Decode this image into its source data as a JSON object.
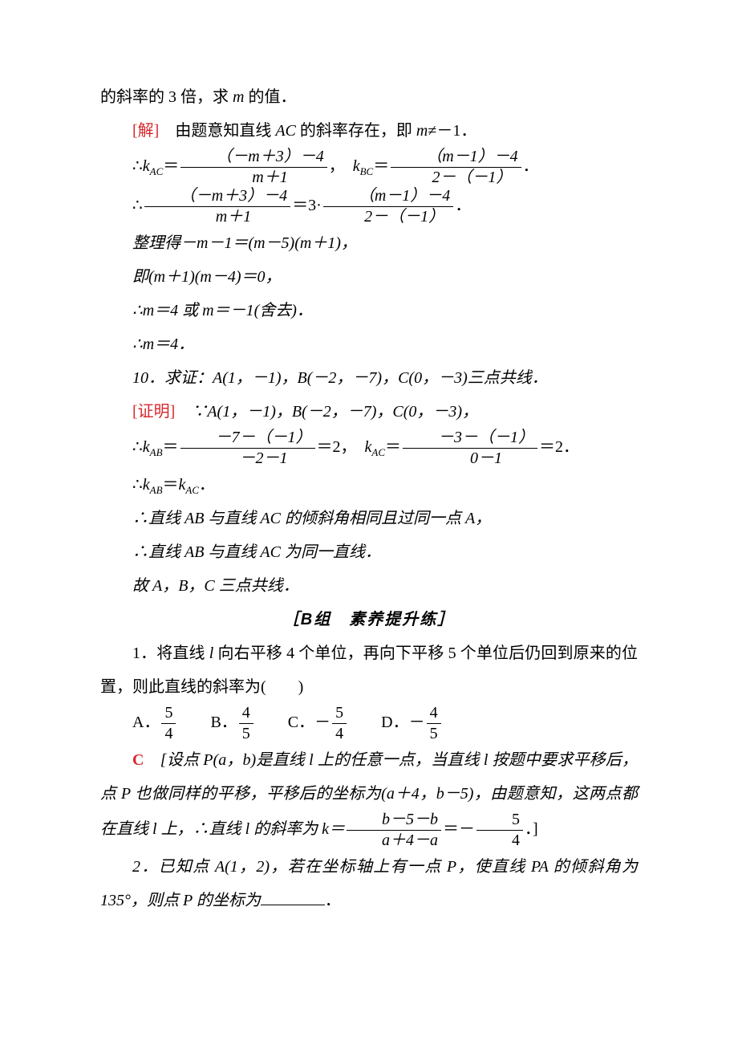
{
  "p1": "的斜率的 3 倍，求 ",
  "p1b": " 的值．",
  "sol_label": "[解]",
  "sol_text1": "　由题意知直线 ",
  "sol_text2": " 的斜率存在，即 ",
  "sol_text3": "≠－1．",
  "eq1_pre": "∴",
  "eq1_kAC": "k",
  "eq1_eq": "＝",
  "eq1_num": "（－m＋3）－4",
  "eq1_den": "m＋1",
  "eq1_sep": "，",
  "eq1_kBC": "k",
  "eq1_num2": "（m－1）－4",
  "eq1_den2": "2－（－1）",
  "eq1_period": "．",
  "eq2_pre": "∴",
  "eq2_num": "（－m＋3）－4",
  "eq2_den": "m＋1",
  "eq2_mid": "＝3·",
  "eq2_num2": "（m－1）－4",
  "eq2_den2": "2－（－1）",
  "eq2_period": "．",
  "l3": "整理得－m－1＝(m－5)(m＋1)，",
  "l4": "即(m＋1)(m－4)＝0，",
  "l5": "∴m＝4 或 m＝－1(舍去)．",
  "l6": "∴m＝4．",
  "q10": "10．求证：A(1，－1)，B(－2，－7)，C(0，－3)三点共线．",
  "proof_label": "[证明]",
  "proof_text": "　∵A(1，－1)，B(－2，－7)，C(0，－3)，",
  "eq3_pre": "∴",
  "eq3_k": "k",
  "eq3_eq": "＝",
  "eq3_num": "－7－（－1）",
  "eq3_den": "－2－1",
  "eq3_val": "＝2，",
  "eq3_k2": "k",
  "eq3_num2": "－3－（－1）",
  "eq3_den2": "0－1",
  "eq3_val2": "＝2．",
  "l7": "∴",
  "l7a": "k",
  "l7b": "＝",
  "l7c": "k",
  "l7d": "．",
  "l8": "∴直线 AB 与直线 AC 的倾斜角相同且过同一点 A，",
  "l9": "∴直线 AB 与直线 AC 为同一直线．",
  "l10": "故 A，B，C 三点共线．",
  "sectionB": "B",
  "sectionB_text": "组　素养提升练",
  "q1a": "1．将直线 ",
  "q1b": " 向右平移 4 个单位，再向下平移 5 个单位后仍回到原来的位置，则此直线的斜率为(　　)",
  "optA": "A．",
  "optA_num": "5",
  "optA_den": "4",
  "optB": "B．",
  "optB_num": "4",
  "optB_den": "5",
  "optC": "C．－",
  "optC_num": "5",
  "optC_den": "4",
  "optD": "D．－",
  "optD_num": "4",
  "optD_den": "5",
  "ansC": "C",
  "expl1a": "　[设点 P(a，b)是直线 ",
  "expl1b": " 上的任意一点，当直线 ",
  "expl1c": " 按题中要求平移后，点 P 也做同样的平移，平移后的坐标为(a＋4，b－5)，由题意知，这两点都在直线 ",
  "expl1d": " 上，∴直线 ",
  "expl1e": " 的斜率为 k＝",
  "expl_num": "b－5－b",
  "expl_den": "a＋4－a",
  "expl_mid": "＝－",
  "expl_num2": "5",
  "expl_den2": "4",
  "expl_end": "．]",
  "q2a": "2．已知点 A(1，2)，若在坐标轴上有一点 P，使直线 PA 的倾斜角为 135°，则点 P 的坐标为",
  "q2b": "．"
}
